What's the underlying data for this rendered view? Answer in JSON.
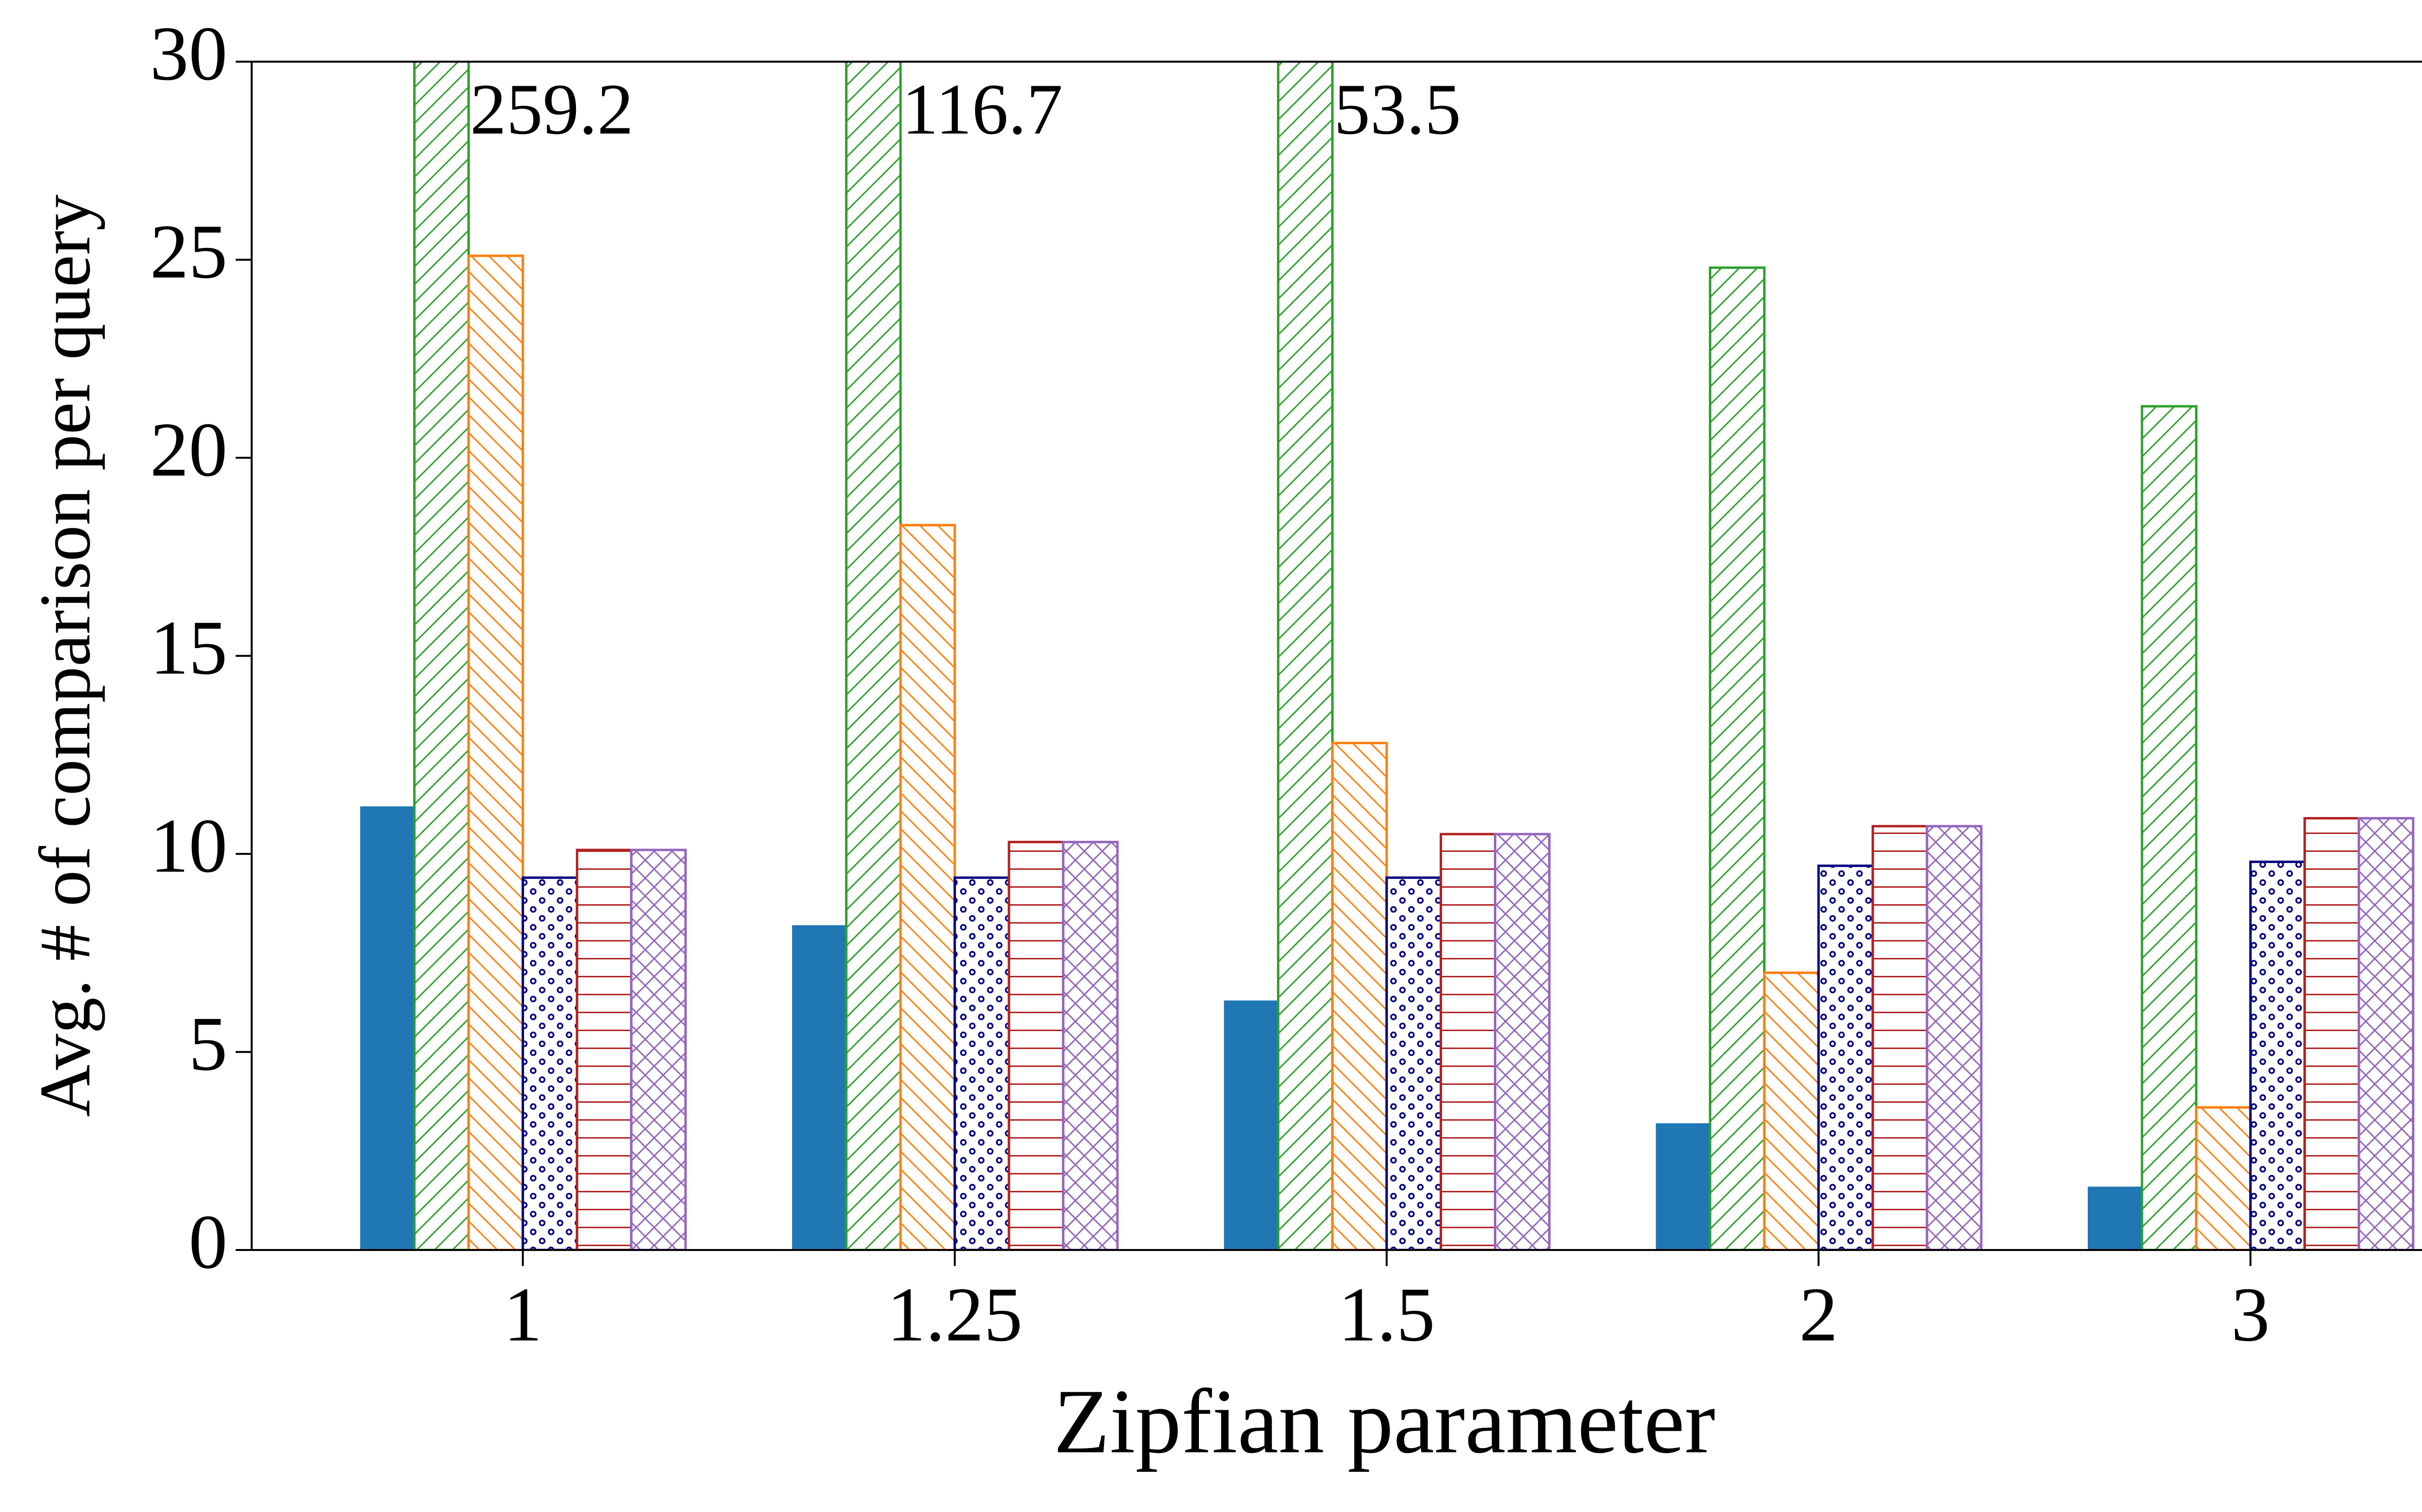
{
  "chart_data": {
    "type": "bar",
    "xlabel": "Zipfian parameter",
    "ylabel": "Avg. # of comparison per query",
    "categories": [
      "1",
      "1.25",
      "1.5",
      "2",
      "3"
    ],
    "series": [
      {
        "color": "#1f77b4",
        "hatch": "solid",
        "values": [
          11.2,
          8.2,
          6.3,
          3.2,
          1.6
        ]
      },
      {
        "color": "#2ca02c",
        "hatch": "//",
        "values": [
          259.2,
          116.7,
          53.5,
          24.8,
          21.3
        ],
        "value_labels": [
          "259.2",
          "116.7",
          "53.5",
          null,
          null
        ]
      },
      {
        "color": "#ff7f0e",
        "hatch": "\\\\",
        "values": [
          25.1,
          18.3,
          12.8,
          7.0,
          3.6
        ]
      },
      {
        "color": "#000080",
        "hatch": "o",
        "values": [
          9.4,
          9.4,
          9.4,
          9.7,
          9.8
        ]
      },
      {
        "color": "#b22222",
        "hatch": "-",
        "values": [
          10.1,
          10.3,
          10.5,
          10.7,
          10.9
        ]
      },
      {
        "color": "#9467bd",
        "hatch": "x",
        "values": [
          10.1,
          10.3,
          10.5,
          10.7,
          10.9
        ]
      }
    ],
    "ylim": [
      0,
      30
    ],
    "yticks": [
      0,
      5,
      10,
      15,
      20,
      25,
      30
    ],
    "grid": false
  }
}
